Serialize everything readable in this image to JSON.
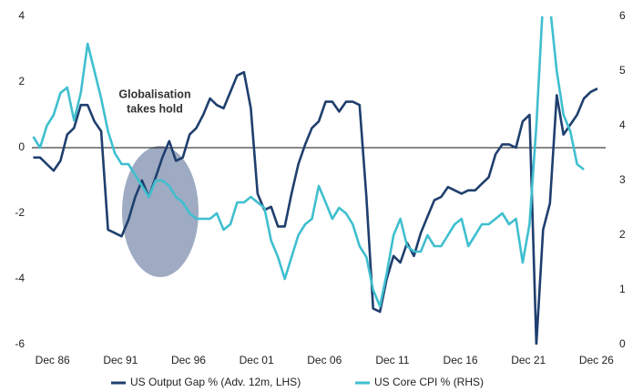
{
  "chart_data": {
    "type": "line",
    "legend": "bottom",
    "annotation": {
      "text": [
        "Globalisation",
        "takes hold"
      ]
    },
    "x": [
      1985.5,
      1986,
      1986.5,
      1987,
      1987.5,
      1988,
      1988.5,
      1989,
      1989.5,
      1990,
      1990.5,
      1991,
      1991.5,
      1992,
      1992.5,
      1993,
      1993.5,
      1994,
      1994.5,
      1995,
      1995.5,
      1996,
      1996.5,
      1997,
      1997.5,
      1998,
      1998.5,
      1999,
      1999.5,
      2000,
      2000.5,
      2001,
      2001.5,
      2002,
      2002.5,
      2003,
      2003.5,
      2004,
      2004.5,
      2005,
      2005.5,
      2006,
      2006.5,
      2007,
      2007.5,
      2008,
      2008.5,
      2009,
      2009.5,
      2010,
      2010.5,
      2011,
      2011.5,
      2012,
      2012.5,
      2013,
      2013.5,
      2014,
      2014.5,
      2015,
      2015.5,
      2016,
      2016.5,
      2017,
      2017.5,
      2018,
      2018.5,
      2019,
      2019.5,
      2020,
      2020.5,
      2021,
      2021.5,
      2022,
      2022.5,
      2023,
      2023.5,
      2024,
      2024.5,
      2025,
      2025.5,
      2026,
      2026.5,
      2027
    ],
    "series": [
      {
        "name": "US Output Gap % (Adv. 12m, LHS)",
        "color": "#1f3f6e",
        "values": [
          -0.3,
          -0.3,
          -0.5,
          -0.7,
          -0.4,
          0.4,
          0.6,
          1.3,
          1.3,
          0.8,
          0.5,
          -2.5,
          -2.6,
          -2.7,
          -2.2,
          -1.5,
          -1.0,
          -1.5,
          -0.9,
          -0.3,
          0.2,
          -0.4,
          -0.3,
          0.4,
          0.6,
          1.0,
          1.5,
          1.3,
          1.2,
          1.7,
          2.2,
          2.3,
          1.2,
          -1.4,
          -1.9,
          -1.8,
          -2.4,
          -2.4,
          -1.4,
          -0.5,
          0.1,
          0.6,
          0.8,
          1.4,
          1.4,
          1.1,
          1.4,
          1.4,
          1.3,
          -1.5,
          -4.9,
          -5.0,
          -4.0,
          -3.3,
          -3.5,
          -2.9,
          -3.3,
          -2.6,
          -2.1,
          -1.6,
          -1.5,
          -1.2,
          -1.3,
          -1.4,
          -1.3,
          -1.3,
          -1.1,
          -0.9,
          -0.2,
          0.1,
          0.1,
          0.0,
          0.8,
          1.0,
          -6.0,
          -2.5,
          -1.7,
          1.6,
          0.4,
          0.7,
          1.0,
          1.5,
          1.7,
          1.8
        ]
      },
      {
        "name": "US Core CPI % (RHS)",
        "color": "#3fbfcf",
        "axis": "y2",
        "values": [
          3.8,
          3.6,
          4.0,
          4.2,
          4.6,
          4.7,
          4.1,
          4.6,
          5.5,
          5.0,
          4.5,
          3.9,
          3.5,
          3.3,
          3.3,
          3.1,
          2.9,
          2.7,
          3.0,
          3.0,
          2.9,
          2.7,
          2.6,
          2.4,
          2.3,
          2.3,
          2.3,
          2.4,
          2.1,
          2.2,
          2.6,
          2.6,
          2.7,
          2.6,
          2.5,
          1.9,
          1.6,
          1.2,
          1.6,
          2.0,
          2.2,
          2.3,
          2.9,
          2.6,
          2.3,
          2.5,
          2.4,
          2.2,
          1.8,
          1.6,
          1.0,
          0.7,
          1.3,
          2.0,
          2.3,
          1.8,
          1.7,
          1.7,
          2.0,
          1.8,
          1.8,
          2.0,
          2.2,
          2.3,
          1.8,
          2.0,
          2.2,
          2.2,
          2.3,
          2.4,
          2.2,
          2.3,
          1.5,
          2.2,
          4.0,
          6.3,
          6.2,
          5.0,
          4.2,
          3.9,
          3.3,
          3.2,
          null,
          null
        ]
      }
    ],
    "xlim": [
      1985.4,
      2027.6
    ],
    "xticks": [
      {
        "value": 1986.92,
        "label": "Dec 86"
      },
      {
        "value": 1991.92,
        "label": "Dec 91"
      },
      {
        "value": 1996.92,
        "label": "Dec 96"
      },
      {
        "value": 2001.92,
        "label": "Dec 01"
      },
      {
        "value": 2006.92,
        "label": "Dec 06"
      },
      {
        "value": 2011.92,
        "label": "Dec 11"
      },
      {
        "value": 2016.92,
        "label": "Dec 16"
      },
      {
        "value": 2021.92,
        "label": "Dec 21"
      },
      {
        "value": 2026.92,
        "label": "Dec 26"
      }
    ],
    "ylim": [
      -6,
      4
    ],
    "yticks": [
      -6,
      -4,
      -2,
      0,
      2,
      4
    ],
    "y2lim": [
      0,
      6
    ],
    "y2ticks": [
      0,
      1,
      2,
      3,
      4,
      5,
      6
    ]
  }
}
